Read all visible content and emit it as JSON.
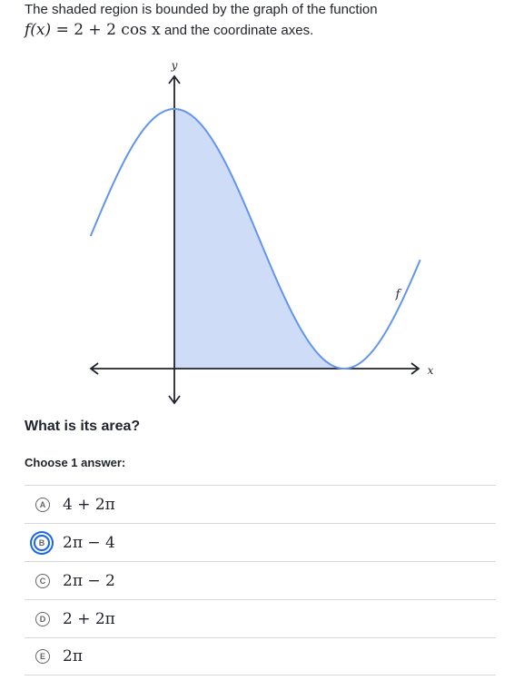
{
  "question": {
    "line1": "The shaded region is bounded by the graph of the function",
    "func_lhs": "f(x)",
    "func_rhs": "= 2 + 2 cos x",
    "line2_tail": "and the coordinate axes."
  },
  "graph": {
    "x_axis_label": "x",
    "y_axis_label": "y",
    "curve_label": "f",
    "curve_color": "#6495ed",
    "shade_color": "#cfdcf7",
    "axis_color": "#21242c"
  },
  "prompt": "What is its area?",
  "choose_label": "Choose 1 answer:",
  "choices": [
    {
      "letter": "A",
      "text": "4 + 2π",
      "selected": false
    },
    {
      "letter": "B",
      "text": "2π − 4",
      "selected": true
    },
    {
      "letter": "C",
      "text": "2π − 2",
      "selected": false
    },
    {
      "letter": "D",
      "text": "2 + 2π",
      "selected": false
    },
    {
      "letter": "E",
      "text": "2π",
      "selected": false
    }
  ],
  "colors": {
    "accent": "#1865f2",
    "text": "#21242c",
    "divider": "#d6d8da"
  }
}
